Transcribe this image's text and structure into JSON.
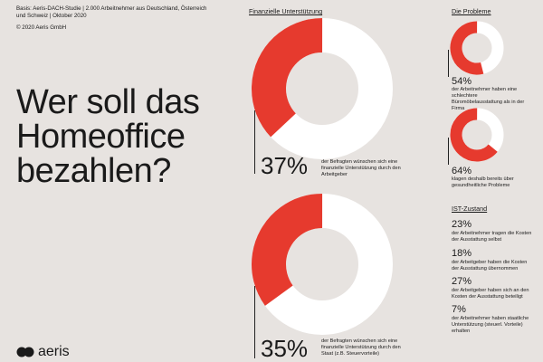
{
  "basis": "Basis: Aeris-DACH-Studie | 2.000 Arbeitnehmer aus Deutschland, Österreich und Schweiz | Oktober 2020",
  "copyright": "© 2020 Aeris GmbH",
  "headline": [
    "Wer soll das",
    "Homeoffice",
    "bezahlen?"
  ],
  "brand": "aeris",
  "colors": {
    "accent": "#e63a2e",
    "ring": "#ffffff",
    "background": "#e7e3e0"
  },
  "chart_data": [
    {
      "type": "pie",
      "title": "Finanzielle Unterstützung",
      "value_label": "37%",
      "description": "der Befragten wünschen sich eine finanzielle Unterstützung durch den Arbeitgeber",
      "values": [
        37,
        63
      ]
    },
    {
      "type": "pie",
      "title": "",
      "value_label": "35%",
      "description": "der Befragten wünschen sich eine finanzielle Unterstützung durch den Staat (z.B. Steuervorteile)",
      "values": [
        35,
        65
      ]
    },
    {
      "type": "pie",
      "title": "Die Probleme",
      "value_label": "54%",
      "description": "der Arbeitnehmer haben eine schlechtere Büromöbelausstattung als in der Firma",
      "values": [
        54,
        46
      ]
    },
    {
      "type": "pie",
      "title": "",
      "value_label": "64%",
      "description": "klagen deshalb bereits über gesundheitliche Probleme",
      "values": [
        64,
        36
      ]
    }
  ],
  "ist_zustand": {
    "title": "IST-Zustand",
    "items": [
      {
        "value": "23%",
        "text": "der Arbeitnehmer tragen die Kosten der Ausstattung selbst"
      },
      {
        "value": "18%",
        "text": "der Arbeitgeber haben die Kosten der Ausstattung übernommen"
      },
      {
        "value": "27%",
        "text": "der Arbeitgeber haben sich an den Kosten der Ausstattung beteiligt"
      },
      {
        "value": "7%",
        "text": "der Arbeitnehmer haben staatliche Unterstützung (steuerl. Vorteile) erhalten"
      }
    ]
  }
}
